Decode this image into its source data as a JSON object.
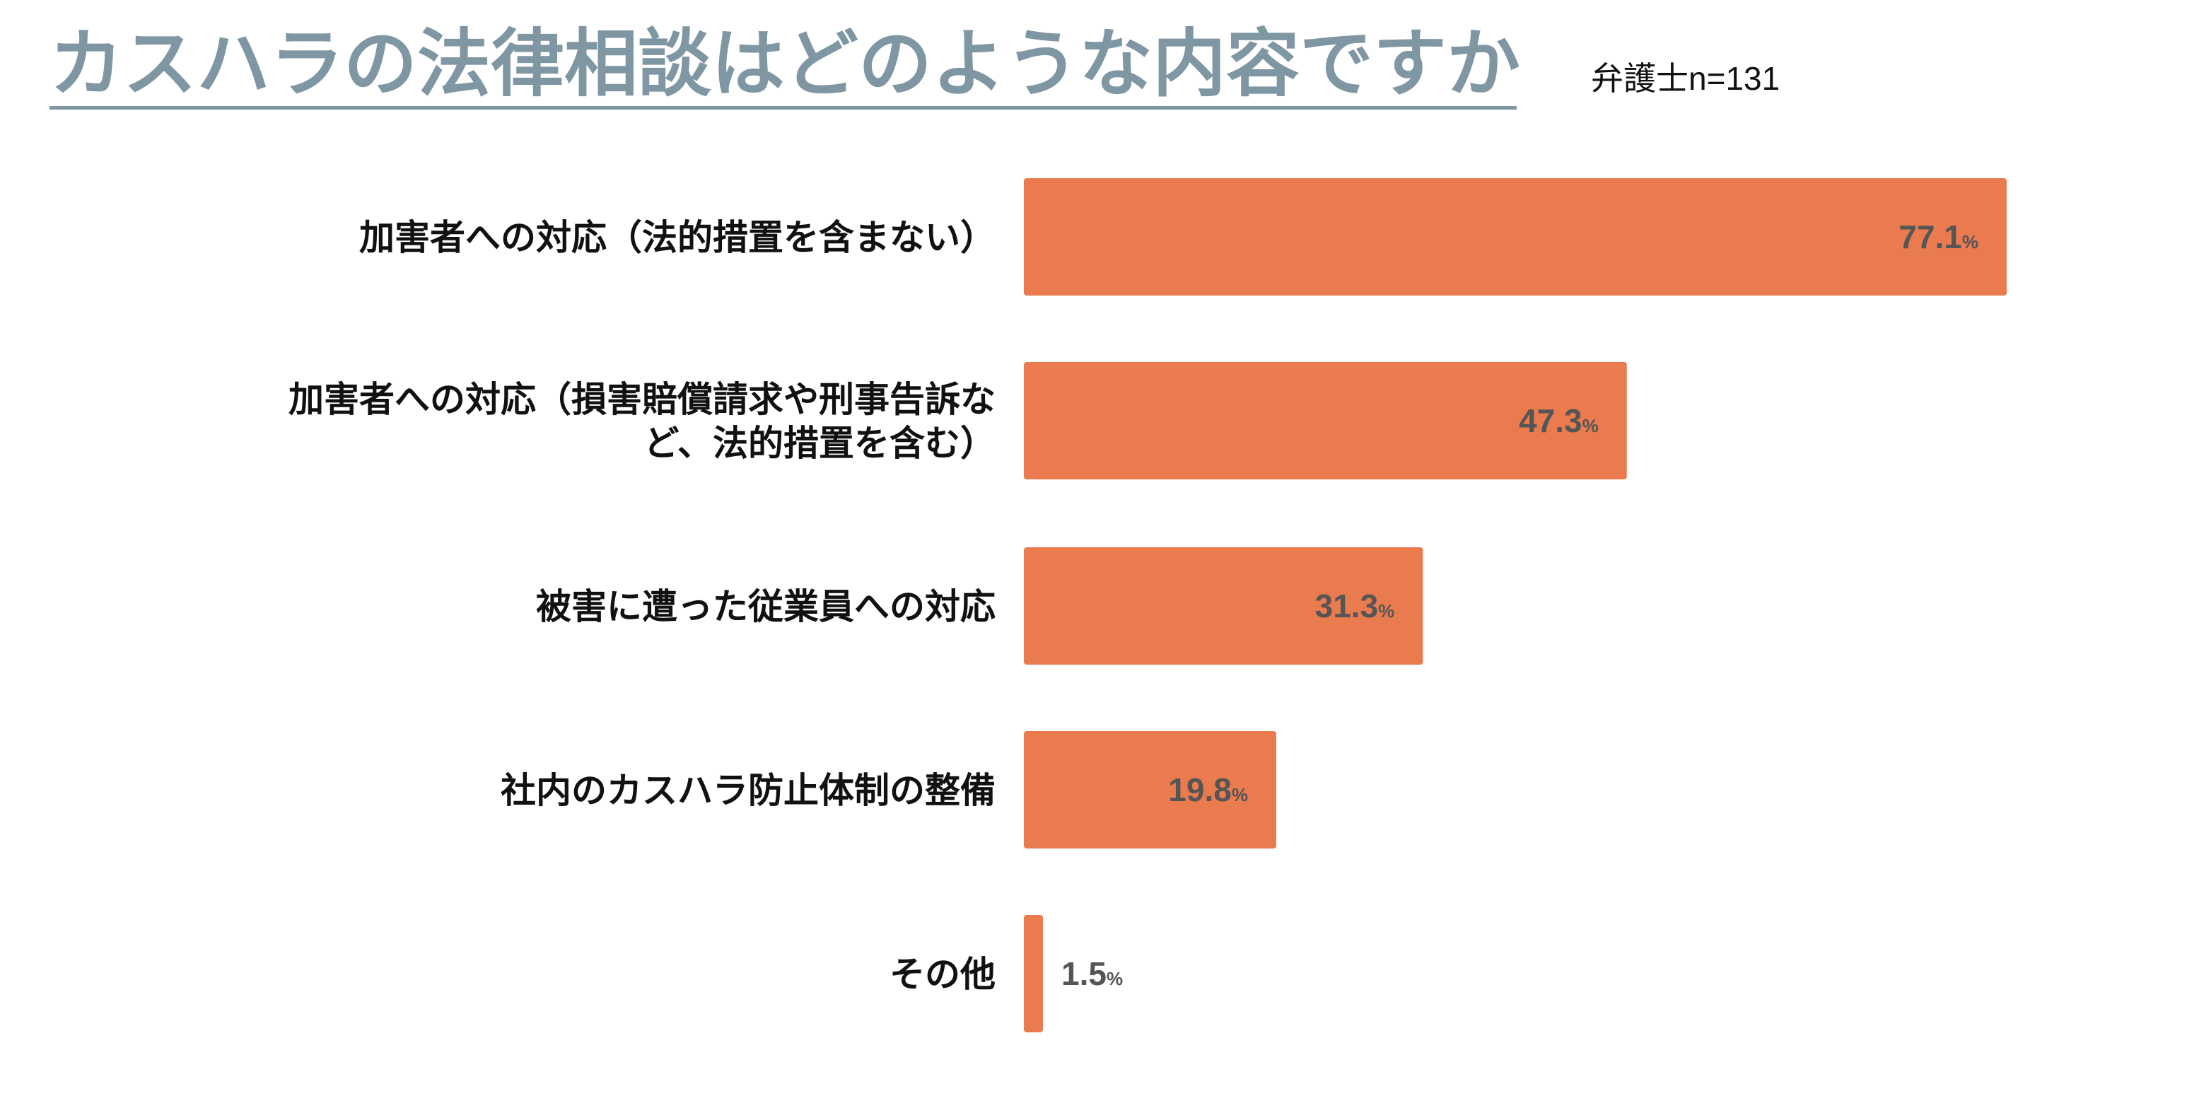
{
  "title": "カスハラの法律相談はどのような内容ですか",
  "subtitle": "弁護士n=131",
  "chart_data": {
    "type": "bar",
    "orientation": "horizontal",
    "categories": [
      [
        "加害者への対応（法的措置を含まない）"
      ],
      [
        "加害者への対応（損害賠償請求や刑事告訴な",
        "ど、法的措置を含む）"
      ],
      [
        "被害に遭った従業員への対応"
      ],
      [
        "社内のカスハラ防止体制の整備"
      ],
      [
        "その他"
      ]
    ],
    "values": [
      77.1,
      47.3,
      31.3,
      19.8,
      1.5
    ],
    "value_labels": [
      "77.1",
      "47.3",
      "31.3",
      "19.8",
      "1.5"
    ],
    "unit": "%",
    "xlim": [
      0,
      100
    ],
    "bar_color": "#e97b4f",
    "label_color": "#555555",
    "title_color": "#7f96a3"
  }
}
